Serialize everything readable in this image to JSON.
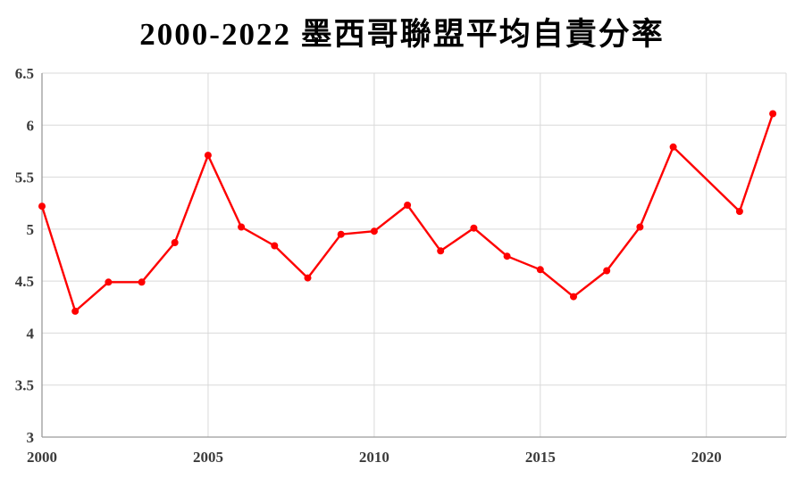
{
  "chart_data": {
    "type": "line",
    "title": "2000-2022 墨西哥聯盟平均自責分率",
    "x": [
      2000,
      2001,
      2002,
      2003,
      2004,
      2005,
      2006,
      2007,
      2008,
      2009,
      2010,
      2011,
      2012,
      2013,
      2014,
      2015,
      2016,
      2017,
      2018,
      2019,
      2021,
      2022
    ],
    "values": [
      5.22,
      4.21,
      4.49,
      4.49,
      4.87,
      5.71,
      5.02,
      4.84,
      4.53,
      4.95,
      4.98,
      5.23,
      4.79,
      5.01,
      4.74,
      4.61,
      4.35,
      4.6,
      5.02,
      5.79,
      5.17,
      6.11
    ],
    "xlabel": "",
    "ylabel": "",
    "xlim": [
      2000,
      2022.4
    ],
    "ylim": [
      3,
      6.5
    ],
    "yticks": [
      3,
      3.5,
      4,
      4.5,
      5,
      5.5,
      6,
      6.5
    ],
    "xticks": [
      2000,
      2005,
      2010,
      2015,
      2020
    ],
    "grid": true,
    "legend": "none",
    "line_color": "#fe0000",
    "marker": "circle",
    "grid_color": "#d9d9d9",
    "axis_color": "#9b9b9b",
    "tick_text_color": "#3b3b3b"
  }
}
